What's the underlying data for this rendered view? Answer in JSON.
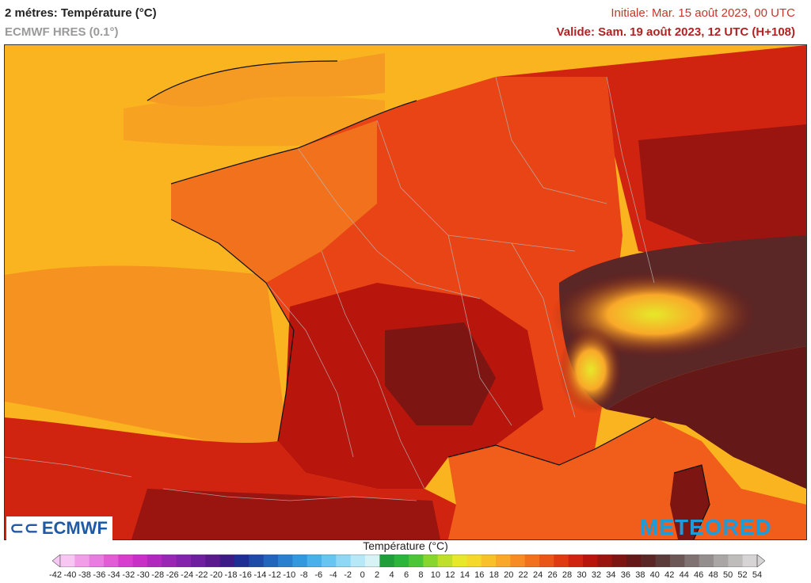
{
  "header": {
    "title": "2 métres: Température (°C)",
    "model": "ECMWF HRES (0.1°)",
    "initial": "Initiale: Mar. 15 août 2023, 00 UTC",
    "valid": "Valide: Sam. 19 août 2023, 12 UTC (H+108)"
  },
  "logos": {
    "left": "ECMWF",
    "right": "METEORED"
  },
  "legend": {
    "title": "Température (°C)",
    "ticks": [
      "-42",
      "-40",
      "-38",
      "-36",
      "-34",
      "-32",
      "-30",
      "-28",
      "-26",
      "-24",
      "-22",
      "-20",
      "-18",
      "-16",
      "-14",
      "-12",
      "-10",
      "-8",
      "-6",
      "-4",
      "-2",
      "0",
      "2",
      "4",
      "6",
      "8",
      "10",
      "12",
      "14",
      "16",
      "18",
      "20",
      "22",
      "24",
      "26",
      "28",
      "30",
      "32",
      "34",
      "36",
      "38",
      "40",
      "42",
      "44",
      "46",
      "48",
      "50",
      "52",
      "54"
    ],
    "colors": [
      "#f7c6f2",
      "#f19de7",
      "#e97ce0",
      "#e25cd6",
      "#d83ecd",
      "#c82fc6",
      "#b028bd",
      "#9a26b6",
      "#8424ad",
      "#6e1f9f",
      "#5a1a8e",
      "#3d1b86",
      "#1f2e94",
      "#1e4aa8",
      "#2265bc",
      "#2a80cf",
      "#3299de",
      "#48b1ea",
      "#66c6f1",
      "#8fd8f5",
      "#b7e8f8",
      "#d8f3f6",
      "#1f9e3a",
      "#2bb53a",
      "#4cc637",
      "#86d62e",
      "#bfe02a",
      "#e6e829",
      "#f4d92a",
      "#f8c12a",
      "#f9a829",
      "#f68c23",
      "#f1711d",
      "#ea5518",
      "#e03a13",
      "#d12410",
      "#b8150d",
      "#9a1410",
      "#7d1512",
      "#651818",
      "#5a2626",
      "#5c3b3b",
      "#6c5656",
      "#807272",
      "#958e8e",
      "#aaa6a6",
      "#bfbcbc",
      "#d6d4d4"
    ]
  }
}
